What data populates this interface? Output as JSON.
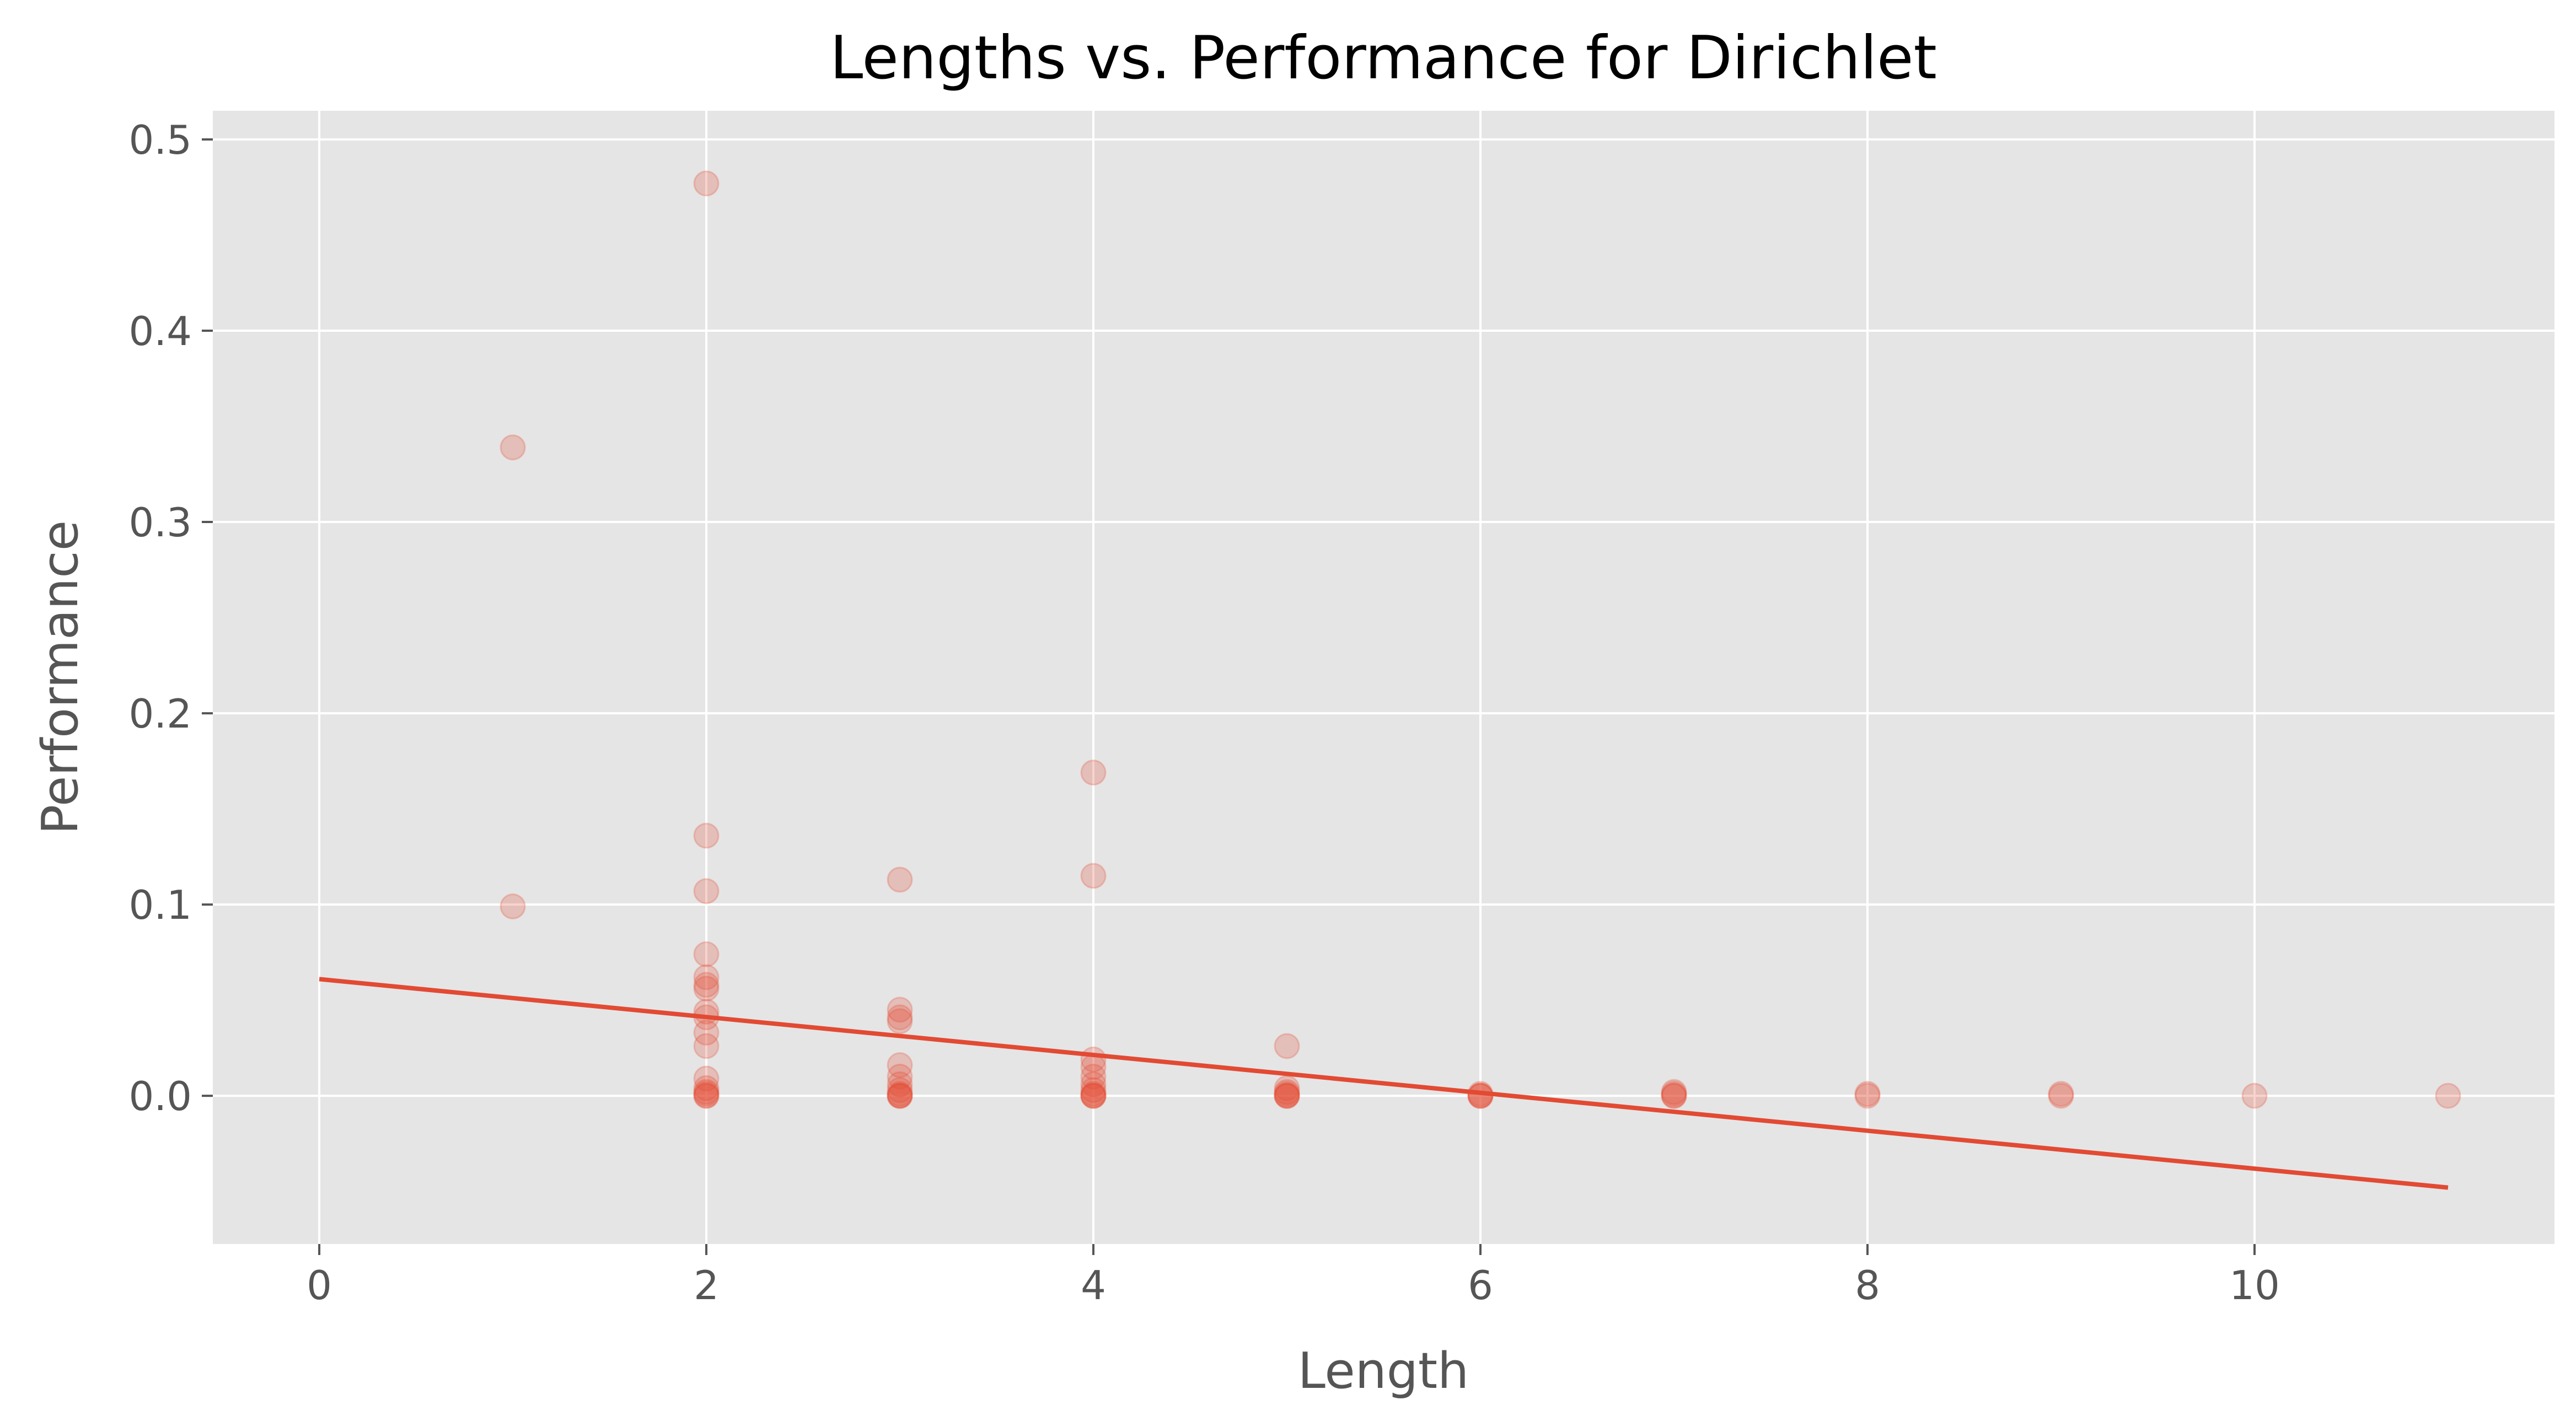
{
  "chart_data": {
    "type": "scatter",
    "title": "Lengths vs. Performance for Dirichlet",
    "xlabel": "Length",
    "ylabel": "Performance",
    "xlim": [
      -0.55,
      11.55
    ],
    "ylim": [
      -0.0775,
      0.515
    ],
    "xticks": [
      0,
      2,
      4,
      6,
      8,
      10
    ],
    "yticks": [
      0.0,
      0.1,
      0.2,
      0.3,
      0.4,
      0.5
    ],
    "xtick_labels": [
      "0",
      "2",
      "4",
      "6",
      "8",
      "10"
    ],
    "ytick_labels": [
      "0.0",
      "0.1",
      "0.2",
      "0.3",
      "0.4",
      "0.5"
    ],
    "grid": true,
    "background_color": "#E5E5E5",
    "grid_color": "#FFFFFF",
    "point_color": "#E24A33",
    "point_alpha": 0.25,
    "line_color": "#E24A33",
    "series": [
      {
        "kind": "points",
        "points": [
          [
            1,
            0.339
          ],
          [
            1,
            0.099
          ],
          [
            2,
            0.477
          ],
          [
            2,
            0.136
          ],
          [
            2,
            0.107
          ],
          [
            2,
            0.074
          ],
          [
            2,
            0.062
          ],
          [
            2,
            0.058
          ],
          [
            2,
            0.056
          ],
          [
            2,
            0.044
          ],
          [
            2,
            0.041
          ],
          [
            2,
            0.033
          ],
          [
            2,
            0.026
          ],
          [
            2,
            0.009
          ],
          [
            2,
            0.004
          ],
          [
            2,
            0.002
          ],
          [
            2,
            0.001
          ],
          [
            2,
            0.0
          ],
          [
            2,
            0.0
          ],
          [
            3,
            0.113
          ],
          [
            3,
            0.045
          ],
          [
            3,
            0.041
          ],
          [
            3,
            0.039
          ],
          [
            3,
            0.016
          ],
          [
            3,
            0.01
          ],
          [
            3,
            0.006
          ],
          [
            3,
            0.003
          ],
          [
            3,
            0.001
          ],
          [
            3,
            0.0
          ],
          [
            3,
            0.0
          ],
          [
            3,
            0.0
          ],
          [
            4,
            0.169
          ],
          [
            4,
            0.115
          ],
          [
            4,
            0.019
          ],
          [
            4,
            0.015
          ],
          [
            4,
            0.01
          ],
          [
            4,
            0.006
          ],
          [
            4,
            0.003
          ],
          [
            4,
            0.001
          ],
          [
            4,
            0.0
          ],
          [
            4,
            0.0
          ],
          [
            4,
            0.0
          ],
          [
            5,
            0.026
          ],
          [
            5,
            0.004
          ],
          [
            5,
            0.002
          ],
          [
            5,
            0.001
          ],
          [
            5,
            0.0
          ],
          [
            5,
            0.0
          ],
          [
            5,
            0.0
          ],
          [
            6,
            0.001
          ],
          [
            6,
            0.0
          ],
          [
            6,
            0.0
          ],
          [
            6,
            0.0
          ],
          [
            7,
            0.002
          ],
          [
            7,
            0.001
          ],
          [
            7,
            0.0
          ],
          [
            7,
            0.0
          ],
          [
            8,
            0.001
          ],
          [
            8,
            0.0
          ],
          [
            9,
            0.001
          ],
          [
            9,
            0.0
          ],
          [
            10,
            0.0
          ],
          [
            11,
            0.0
          ]
        ]
      },
      {
        "kind": "line",
        "x": [
          0,
          11
        ],
        "y": [
          0.061,
          -0.048
        ]
      }
    ]
  }
}
